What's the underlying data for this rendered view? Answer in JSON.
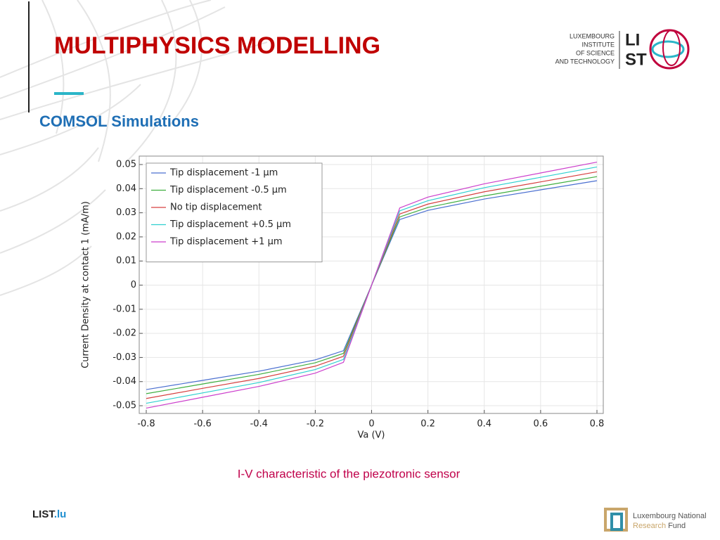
{
  "header": {
    "title": "MULTIPHYSICS MODELLING",
    "subtitle": "COMSOL Simulations"
  },
  "logo": {
    "lines": [
      "LUXEMBOURG",
      "INSTITUTE",
      "OF SCIENCE",
      "AND TECHNOLOGY"
    ],
    "mark_top": "LI",
    "mark_bottom": "ST"
  },
  "chart_data": {
    "type": "line",
    "x_label": "Va (V)",
    "y_label": "Current Density at contact 1 (mA/m)",
    "x": [
      -0.8,
      -0.6,
      -0.4,
      -0.2,
      -0.1,
      0,
      0.1,
      0.2,
      0.4,
      0.6,
      0.8
    ],
    "xlim": [
      -0.825,
      0.8225
    ],
    "ylim": [
      -0.0532,
      0.0535
    ],
    "xticks": [
      -0.8,
      -0.6,
      -0.4,
      -0.2,
      0,
      0.2,
      0.4,
      0.6,
      0.8
    ],
    "yticks": [
      -0.05,
      -0.04,
      -0.03,
      -0.02,
      -0.01,
      0,
      0.01,
      0.02,
      0.03,
      0.04,
      0.05
    ],
    "grid": true,
    "legend": "upper left",
    "series": [
      {
        "name": "Tip displacement -1 µm",
        "color": "#4a6fd0",
        "values": [
          -0.0433,
          -0.0395,
          -0.0357,
          -0.031,
          -0.0272,
          0,
          0.0272,
          0.031,
          0.0357,
          0.0395,
          0.0433
        ]
      },
      {
        "name": "Tip displacement -0.5 µm",
        "color": "#3fae3f",
        "values": [
          -0.045,
          -0.041,
          -0.037,
          -0.0322,
          -0.0283,
          0,
          0.0283,
          0.0322,
          0.037,
          0.041,
          0.045
        ]
      },
      {
        "name": "No tip displacement",
        "color": "#d64040",
        "values": [
          -0.047,
          -0.0428,
          -0.0387,
          -0.0336,
          -0.0295,
          0,
          0.0295,
          0.0336,
          0.0387,
          0.0428,
          0.047
        ]
      },
      {
        "name": "Tip displacement +0.5 µm",
        "color": "#2fd0d0",
        "values": [
          -0.049,
          -0.0447,
          -0.0404,
          -0.035,
          -0.0308,
          0,
          0.0308,
          0.035,
          0.0404,
          0.0447,
          0.049
        ]
      },
      {
        "name": "Tip displacement +1 µm",
        "color": "#cc3fcc",
        "values": [
          -0.051,
          -0.0465,
          -0.042,
          -0.0365,
          -0.032,
          0,
          0.032,
          0.0365,
          0.042,
          0.0465,
          0.051
        ]
      }
    ]
  },
  "caption": "I-V characteristic of the piezotronic sensor",
  "footer": {
    "site": "LIST",
    "site_suffix": ".lu",
    "fund_top": "Luxembourg National",
    "fund_bottom_a": "Research",
    "fund_bottom_b": "Fund"
  }
}
